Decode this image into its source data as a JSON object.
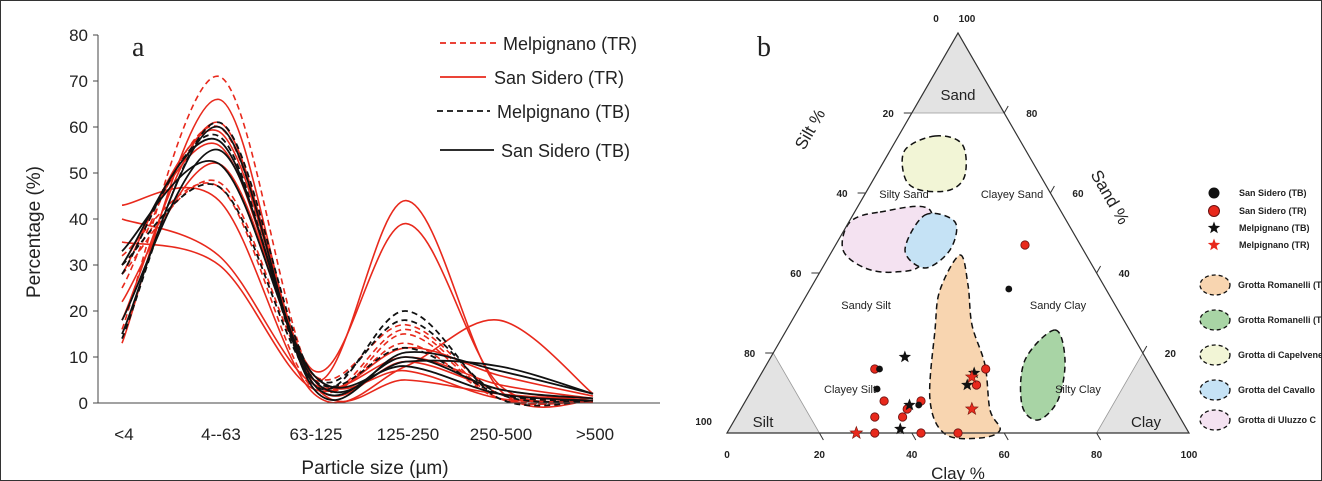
{
  "chart_data": [
    {
      "type": "line",
      "panel_label": "a",
      "xlabel": "Particle size (µm)",
      "ylabel": "Percentage (%)",
      "categories": [
        "<4",
        "4--63",
        "63-125",
        "125-250",
        "250-500",
        ">500"
      ],
      "ylim": [
        0,
        80
      ],
      "yticks": [
        "0",
        "10",
        "20",
        "30",
        "40",
        "50",
        "60",
        "70",
        "80"
      ],
      "grid": false,
      "legend_position": "top-right",
      "legend": [
        {
          "label": "Melpignano (TR)",
          "color": "#e8291c",
          "dash": "dashed"
        },
        {
          "label": "San Sidero (TR)",
          "color": "#e8291c",
          "dash": "solid"
        },
        {
          "label": "Melpignano (TB)",
          "color": "#111111",
          "dash": "dashed"
        },
        {
          "label": "San Sidero (TB)",
          "color": "#111111",
          "dash": "solid"
        }
      ],
      "series": [
        {
          "group": "San Sidero (TR)",
          "values": [
            13,
            66,
            5,
            44,
            3,
            0.5
          ]
        },
        {
          "group": "San Sidero (TR)",
          "values": [
            18,
            61,
            7,
            39,
            4,
            1
          ]
        },
        {
          "group": "San Sidero (TR)",
          "values": [
            43,
            44,
            2,
            8,
            18,
            2
          ]
        },
        {
          "group": "San Sidero (TR)",
          "values": [
            40,
            32,
            4,
            10,
            4,
            1
          ]
        },
        {
          "group": "San Sidero (TR)",
          "values": [
            35,
            30,
            3,
            12,
            6,
            1.5
          ]
        },
        {
          "group": "San Sidero (TR)",
          "values": [
            30,
            56,
            4,
            9,
            3,
            0.5
          ]
        },
        {
          "group": "San Sidero (TR)",
          "values": [
            22,
            52,
            6,
            7,
            1,
            0.2
          ]
        },
        {
          "group": "San Sidero (TR)",
          "values": [
            28,
            59,
            4,
            5,
            2,
            0.5
          ]
        },
        {
          "group": "Melpignano (TR)",
          "values": [
            16,
            71,
            5,
            15,
            1,
            0.5
          ]
        },
        {
          "group": "Melpignano (TR)",
          "values": [
            28,
            48,
            6,
            17,
            2,
            0.5
          ]
        },
        {
          "group": "Melpignano (TR)",
          "values": [
            32,
            47,
            3,
            16,
            1,
            0.5
          ]
        },
        {
          "group": "Melpignano (TR)",
          "values": [
            25,
            60,
            5,
            13,
            1,
            0.5
          ]
        },
        {
          "group": "Melpignano (TB)",
          "values": [
            28,
            58,
            4,
            20,
            1,
            0.5
          ]
        },
        {
          "group": "Melpignano (TB)",
          "values": [
            14,
            61,
            6,
            18,
            2,
            0.5
          ]
        },
        {
          "group": "Melpignano (TB)",
          "values": [
            30,
            47,
            5,
            12,
            2,
            0.5
          ]
        },
        {
          "group": "San Sidero (TB)",
          "values": [
            15,
            60,
            3,
            11,
            7,
            2
          ]
        },
        {
          "group": "San Sidero (TB)",
          "values": [
            18,
            55,
            5,
            9,
            8,
            2
          ]
        },
        {
          "group": "San Sidero (TB)",
          "values": [
            30,
            57,
            4,
            10,
            3,
            1
          ]
        },
        {
          "group": "San Sidero (TB)",
          "values": [
            33,
            52,
            6,
            8,
            2,
            0.5
          ]
        }
      ]
    },
    {
      "type": "scatter",
      "subtype": "ternary",
      "panel_label": "b",
      "axes": {
        "bottom": "Clay %",
        "left": "Silt %",
        "right": "Sand %"
      },
      "axis_ticks": [
        "0",
        "20",
        "40",
        "60",
        "80",
        "100"
      ],
      "apex_top_label": "0",
      "apex_top_value": "100",
      "apex_left_label": "100",
      "apex_right_label": "0",
      "corners": {
        "top": "Sand",
        "left": "Silt",
        "right": "Clay"
      },
      "zones": [
        "Silty Sand",
        "Clayey Sand",
        "Sandy Silt",
        "Sandy Clay",
        "Clayey Silt",
        "Silty Clay"
      ],
      "legend_position": "right",
      "legend": [
        {
          "label": "San Sidero (TB)",
          "marker": "circle",
          "color": "#111111"
        },
        {
          "label": "San Sidero (TR)",
          "marker": "circle",
          "color": "#e8291c"
        },
        {
          "label": "Melpignano (TB)",
          "marker": "star",
          "color": "#111111"
        },
        {
          "label": "Melpignano (TR)",
          "marker": "star",
          "color": "#e8291c"
        },
        {
          "label": "Grotta Romanelli (TB)",
          "marker": "blob",
          "color": "#f8d5b0"
        },
        {
          "label": "Grotta Romanelli (TR)",
          "marker": "blob",
          "color": "#a8d4a5"
        },
        {
          "label": "Grotta di Capelvenere",
          "marker": "blob",
          "color": "#f2f5d6"
        },
        {
          "label": "Grotta del Cavallo",
          "marker": "blob",
          "color": "#c5e2f5"
        },
        {
          "label": "Grotta di Uluzzo C",
          "marker": "blob",
          "color": "#f4e2f1"
        }
      ],
      "points": [
        {
          "group": "San Sidero (TR)",
          "clay": 41,
          "sand": 47
        },
        {
          "group": "San Sidero (TR)",
          "clay": 24,
          "sand": 16
        },
        {
          "group": "San Sidero (TR)",
          "clay": 30,
          "sand": 8
        },
        {
          "group": "San Sidero (TR)",
          "clay": 38,
          "sand": 8
        },
        {
          "group": "San Sidero (TR)",
          "clay": 36,
          "sand": 6
        },
        {
          "group": "San Sidero (TR)",
          "clay": 32,
          "sand": 0
        },
        {
          "group": "San Sidero (TR)",
          "clay": 42,
          "sand": 0
        },
        {
          "group": "San Sidero (TR)",
          "clay": 30,
          "sand": 4
        },
        {
          "group": "San Sidero (TR)",
          "clay": 36,
          "sand": 4
        },
        {
          "group": "San Sidero (TR)",
          "clay": 48,
          "sand": 16
        },
        {
          "group": "San Sidero (TR)",
          "clay": 48,
          "sand": 12
        },
        {
          "group": "San Sidero (TR)",
          "clay": 50,
          "sand": 0
        },
        {
          "group": "San Sidero (TB)",
          "clay": 25,
          "sand": 16
        },
        {
          "group": "San Sidero (TB)",
          "clay": 27,
          "sand": 11
        },
        {
          "group": "San Sidero (TB)",
          "clay": 38,
          "sand": 7
        },
        {
          "group": "San Sidero (TB)",
          "clay": 43,
          "sand": 36
        },
        {
          "group": "Melpignano (TB)",
          "clay": 29,
          "sand": 19
        },
        {
          "group": "Melpignano (TB)",
          "clay": 36,
          "sand": 7
        },
        {
          "group": "Melpignano (TB)",
          "clay": 37,
          "sand": 1
        },
        {
          "group": "Melpignano (TB)",
          "clay": 46,
          "sand": 15
        },
        {
          "group": "Melpignano (TB)",
          "clay": 46,
          "sand": 12
        },
        {
          "group": "Melpignano (TR)",
          "clay": 28,
          "sand": 0
        },
        {
          "group": "Melpignano (TR)",
          "clay": 50,
          "sand": 6
        },
        {
          "group": "Melpignano (TR)",
          "clay": 46,
          "sand": 14
        }
      ]
    }
  ]
}
